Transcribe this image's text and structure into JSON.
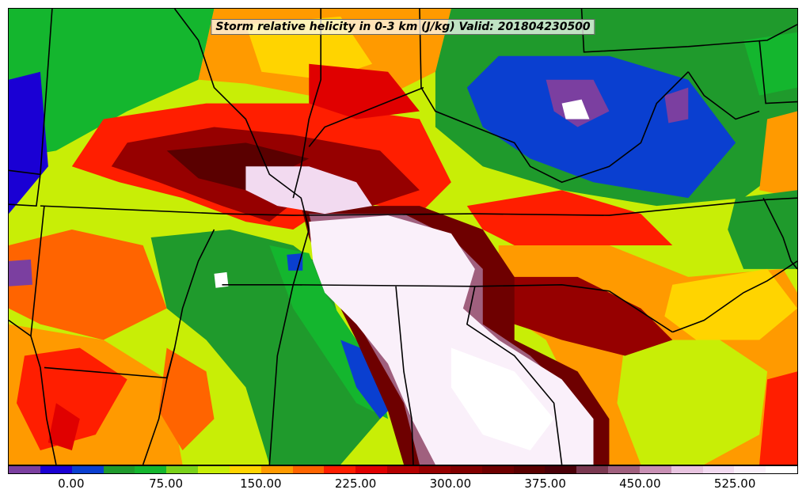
{
  "title": "Storm relative helicity in 0-3 km (J/kg) Valid: 201804230500",
  "colorbar": {
    "min": -50,
    "max": 575,
    "step": 25,
    "colors": [
      "#7b3fa0",
      "#1a00d4",
      "#0a3fd0",
      "#1f9a2c",
      "#14b62e",
      "#7ad21a",
      "#c8ee06",
      "#ffd400",
      "#ff9a00",
      "#ff6400",
      "#ff1e00",
      "#e00000",
      "#b40000",
      "#960000",
      "#820000",
      "#6e0000",
      "#5a0000",
      "#4a0008",
      "#7a3850",
      "#a0607e",
      "#c890b4",
      "#e8c4e0",
      "#f2daf0",
      "#faf0fa",
      "#ffffff"
    ],
    "ticks": [
      "0.00",
      "75.00",
      "150.00",
      "225.00",
      "300.00",
      "375.00",
      "450.00",
      "525.00"
    ]
  },
  "map": {
    "region": "Southeastern United States",
    "field": "storm relative helicity",
    "overlay": "state boundaries"
  }
}
